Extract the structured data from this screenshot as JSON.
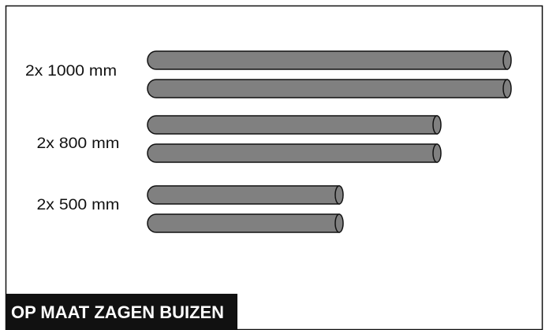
{
  "labels": [
    "2x 1000 mm",
    "2x 800 mm",
    "2x 500 mm"
  ],
  "footer": {
    "title": "OP MAAT ZAGEN BUIZEN"
  }
}
